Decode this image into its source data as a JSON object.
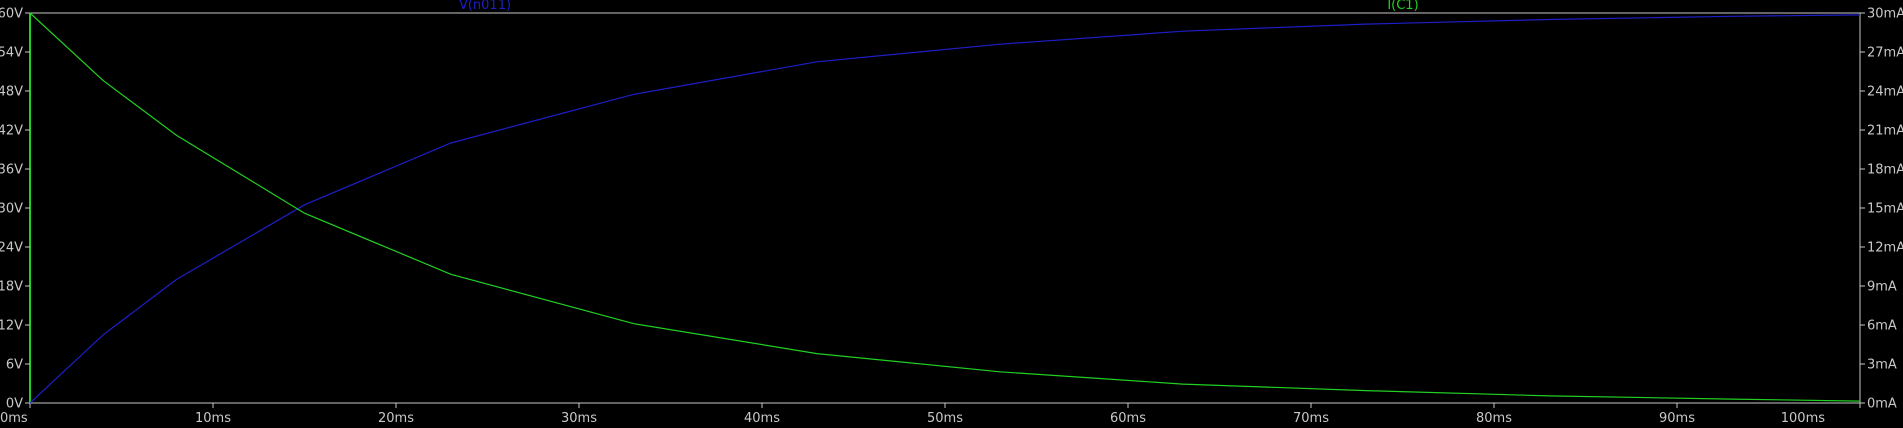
{
  "chart_data": {
    "type": "line",
    "grid": false,
    "legend": "top",
    "x": {
      "range": [
        0,
        100
      ],
      "ticks": [
        0,
        10,
        20,
        30,
        40,
        50,
        60,
        70,
        80,
        90,
        100
      ],
      "tick_labels": [
        "0ms",
        "10ms",
        "20ms",
        "30ms",
        "40ms",
        "50ms",
        "60ms",
        "70ms",
        "80ms",
        "90ms",
        "100ms"
      ]
    },
    "y_left": {
      "range": [
        0,
        60
      ],
      "ticks": [
        0,
        6,
        12,
        18,
        24,
        30,
        36,
        42,
        48,
        54,
        60
      ],
      "tick_labels": [
        "0V",
        "6V",
        "12V",
        "18V",
        "24V",
        "30V",
        "36V",
        "42V",
        "48V",
        "54V",
        "60V"
      ]
    },
    "y_right": {
      "range": [
        0,
        30
      ],
      "ticks": [
        0,
        3,
        6,
        9,
        12,
        15,
        18,
        21,
        24,
        27,
        30
      ],
      "tick_labels": [
        "0mA",
        "3mA",
        "6mA",
        "9mA",
        "12mA",
        "15mA",
        "18mA",
        "21mA",
        "24mA",
        "27mA",
        "30mA"
      ]
    },
    "series": [
      {
        "name": "V(n011)",
        "axis": "left",
        "color": "#1e1ec8",
        "x": [
          0,
          4,
          8,
          15,
          23,
          33,
          43,
          53,
          63,
          73,
          83,
          93,
          100
        ],
        "values": [
          0,
          10.5,
          19,
          30.5,
          40,
          47.5,
          52.5,
          55.2,
          57.2,
          58.3,
          59,
          59.5,
          59.7
        ]
      },
      {
        "name": "I(C1)",
        "axis": "right",
        "color": "#22d022",
        "x": [
          0,
          4,
          8,
          15,
          23,
          33,
          43,
          53,
          63,
          73,
          83,
          93,
          100
        ],
        "values": [
          30,
          24.8,
          20.6,
          14.6,
          9.9,
          6.1,
          3.8,
          2.4,
          1.45,
          0.95,
          0.55,
          0.3,
          0.15
        ]
      }
    ]
  }
}
